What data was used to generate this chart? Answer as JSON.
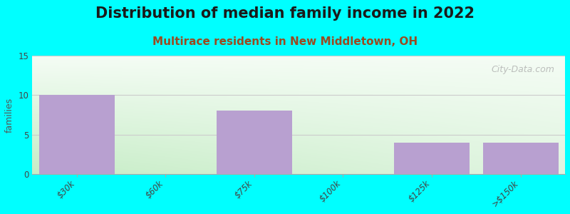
{
  "title": "Distribution of median family income in 2022",
  "subtitle": "Multirace residents in New Middletown, OH",
  "categories": [
    "$30k",
    "$60k",
    "$75k",
    "$100k",
    "$125k",
    ">$150k"
  ],
  "values": [
    10,
    0,
    8,
    0,
    4,
    4
  ],
  "bar_color": "#b8a0d0",
  "background_color": "#00ffff",
  "ylabel": "families",
  "ylim": [
    0,
    15
  ],
  "yticks": [
    0,
    5,
    10,
    15
  ],
  "title_fontsize": 15,
  "subtitle_fontsize": 11,
  "watermark": "City-Data.com",
  "grid_color": "#cccccc",
  "gradient_left": "#c8ecc8",
  "gradient_right": "#f0f8f0",
  "gradient_top": "#f5f5f0",
  "gradient_bottom": "#d0ecd0"
}
